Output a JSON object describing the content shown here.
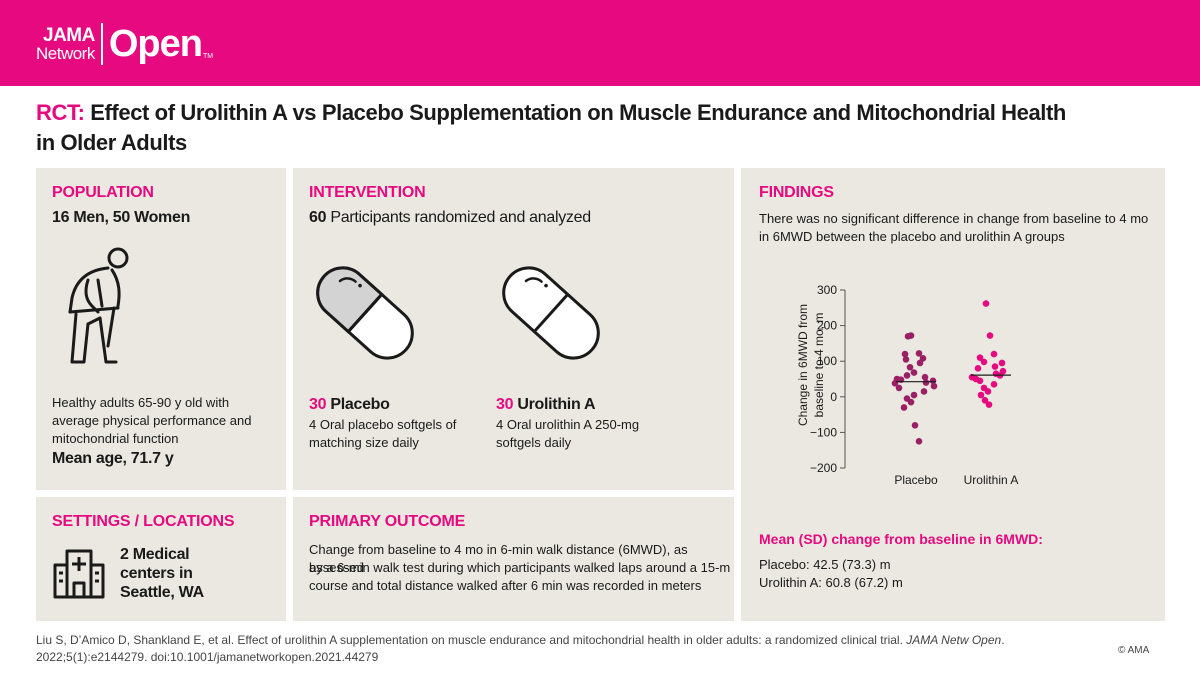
{
  "header": {
    "logo_jama": "JAMA",
    "logo_network": "Network",
    "logo_open": "Open",
    "logo_tm": "TM",
    "brand_color": "#e6097f"
  },
  "title": {
    "prefix": "RCT:",
    "line1": "Effect of Urolithin A vs Placebo Supplementation on Muscle Endurance and Mitochondrial Health",
    "line2": "in Older Adults"
  },
  "population": {
    "heading": "POPULATION",
    "count": "16 Men, 50 Women",
    "icon": "elderly-person-icon",
    "desc_l1": "Healthy adults 65-90 y old with",
    "desc_l2": "average physical performance and",
    "desc_l3": "mitochondrial function",
    "mean_age": "Mean age, 71.7 y"
  },
  "intervention": {
    "heading": "INTERVENTION",
    "count_num": "60",
    "count_text": "Participants randomized and analyzed",
    "placebo": {
      "num": "30",
      "label": "Placebo",
      "desc_l1": "4 Oral placebo softgels of",
      "desc_l2": "matching size daily",
      "icon": "placebo-capsule-icon"
    },
    "urolithin": {
      "num": "30",
      "label": "Urolithin A",
      "desc_l1": "4 Oral urolithin A 250-mg",
      "desc_l2": "softgels daily",
      "icon": "urolithin-capsule-icon"
    }
  },
  "settings": {
    "heading": "SETTINGS / LOCATIONS",
    "icon": "hospital-icon",
    "l1": "2 Medical",
    "l2": "centers in",
    "l3": "Seattle, WA"
  },
  "outcome": {
    "heading": "PRIMARY OUTCOME",
    "l1": "Change from baseline to 4 mo in 6-min walk distance (6MWD), as assessed",
    "l2": "by a 6-min walk test during which participants walked laps around a 15-m",
    "l3": "course and total distance walked after 6 min was recorded in meters"
  },
  "findings": {
    "heading": "FINDINGS",
    "summary_l1": "There was no significant difference in change from baseline to 4 mo",
    "summary_l2": "in 6MWD between the placebo and urolithin A groups",
    "mean_heading": "Mean (SD) change from baseline in 6MWD:",
    "mean_placebo": "Placebo: 42.5 (73.3) m",
    "mean_urolithin": "Urolithin A: 60.8 (67.2) m"
  },
  "chart_data": {
    "type": "scatter",
    "ylabel_l1": "Change in 6MWD from",
    "ylabel_l2": "baseline to 4 mo, m",
    "categories": [
      "Placebo",
      "Urolithin A"
    ],
    "ylim": [
      -200,
      300
    ],
    "yticks": [
      "300",
      "200",
      "100",
      "0",
      "−100",
      "−200"
    ],
    "ytick_values": [
      300,
      200,
      100,
      0,
      -100,
      -200
    ],
    "colors": [
      "#9b1f65",
      "#e6097f"
    ],
    "means": [
      42.5,
      60.8
    ],
    "series": [
      {
        "values": [
          172,
          170,
          122,
          120,
          108,
          105,
          95,
          83,
          68,
          60,
          55,
          50,
          48,
          45,
          40,
          38,
          30,
          25,
          15,
          5,
          -5,
          -15,
          -30,
          -80,
          -125
        ]
      },
      {
        "values": [
          262,
          172,
          120,
          110,
          98,
          95,
          85,
          80,
          72,
          65,
          60,
          55,
          50,
          45,
          35,
          25,
          15,
          5,
          -10,
          -22
        ]
      }
    ]
  },
  "footer": {
    "l1a": "Liu S, D’Amico D, Shankland E, et al. Effect of urolithin A supplementation on muscle endurance and mitochondrial health in older adults: a randomized clinical trial.",
    "journal": "JAMA Netw Open",
    "l2": "2022;5(1):e2144279. doi:10.1001/jamanetworkopen.2021.44279",
    "copyright": "© AMA"
  }
}
